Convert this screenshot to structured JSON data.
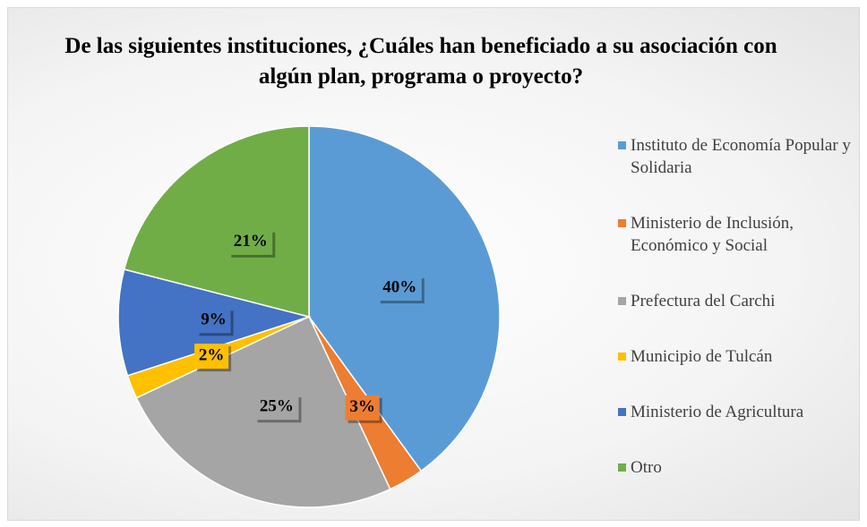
{
  "chart_data": {
    "type": "pie",
    "title": "De las siguientes instituciones, ¿Cuáles han beneficiado a su asociación con algún plan, programa o proyecto?",
    "categories": [
      "Instituto de Economía Popular y Solidaria",
      "Ministerio de Inclusión, Económico y Social",
      "Prefectura del Carchi",
      "Municipio de Tulcán",
      "Ministerio de Agricultura",
      "Otro"
    ],
    "values": [
      40,
      3,
      25,
      2,
      9,
      21
    ],
    "value_labels": [
      "40%",
      "3%",
      "25%",
      "2%",
      "9%",
      "21%"
    ],
    "colors": [
      "#5b9bd5",
      "#ed7d31",
      "#a5a5a5",
      "#ffc000",
      "#4472c4",
      "#70ad47"
    ],
    "legend": "right"
  }
}
